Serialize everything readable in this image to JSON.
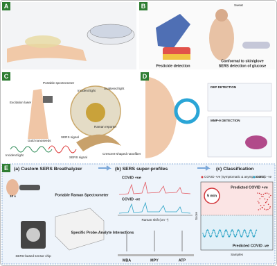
{
  "panels": [
    {
      "label": "A"
    },
    {
      "label": "B",
      "texts": [
        "Sweat",
        "Pesticide detection",
        "Conformal to skin/glove",
        "SERS detection of glucose"
      ]
    },
    {
      "label": "C",
      "texts": [
        "Portable spectrometer",
        "Excitation laser",
        "Incident light",
        "Scattered light",
        "Raman reporter",
        "Gold nanoseeds",
        "SERS signal",
        "Incident light",
        "SERS signal",
        "Crescent-shaped nanofiber"
      ]
    },
    {
      "label": "D",
      "texts": [
        "DEP DETECTION",
        "MMP-9 DETECTION"
      ]
    },
    {
      "label": "E",
      "sections": [
        "(a) Custom SERS Breathalyzer",
        "(b) SERS super-profiles",
        "(c) Classification"
      ],
      "breathalyzer": [
        "10 s",
        "Portable Raman Spectrometer",
        "SERS-based sensor chip"
      ],
      "profiles": [
        "COVID +ve",
        "COVID -ve",
        "Raman shift (cm⁻¹)",
        "Specific Probe-Analyte Interactions",
        "MBA",
        "MPY",
        "ATP"
      ],
      "classification": {
        "legend": [
          "COVID +ve (symptomatic & asymptomatic)",
          "COVID -ve"
        ],
        "timer": "5 min",
        "predicted": [
          "Predicted COVID +ve",
          "Predicted COVID -ve"
        ],
        "y_label": "Score",
        "x_label": "Samples"
      }
    }
  ]
}
